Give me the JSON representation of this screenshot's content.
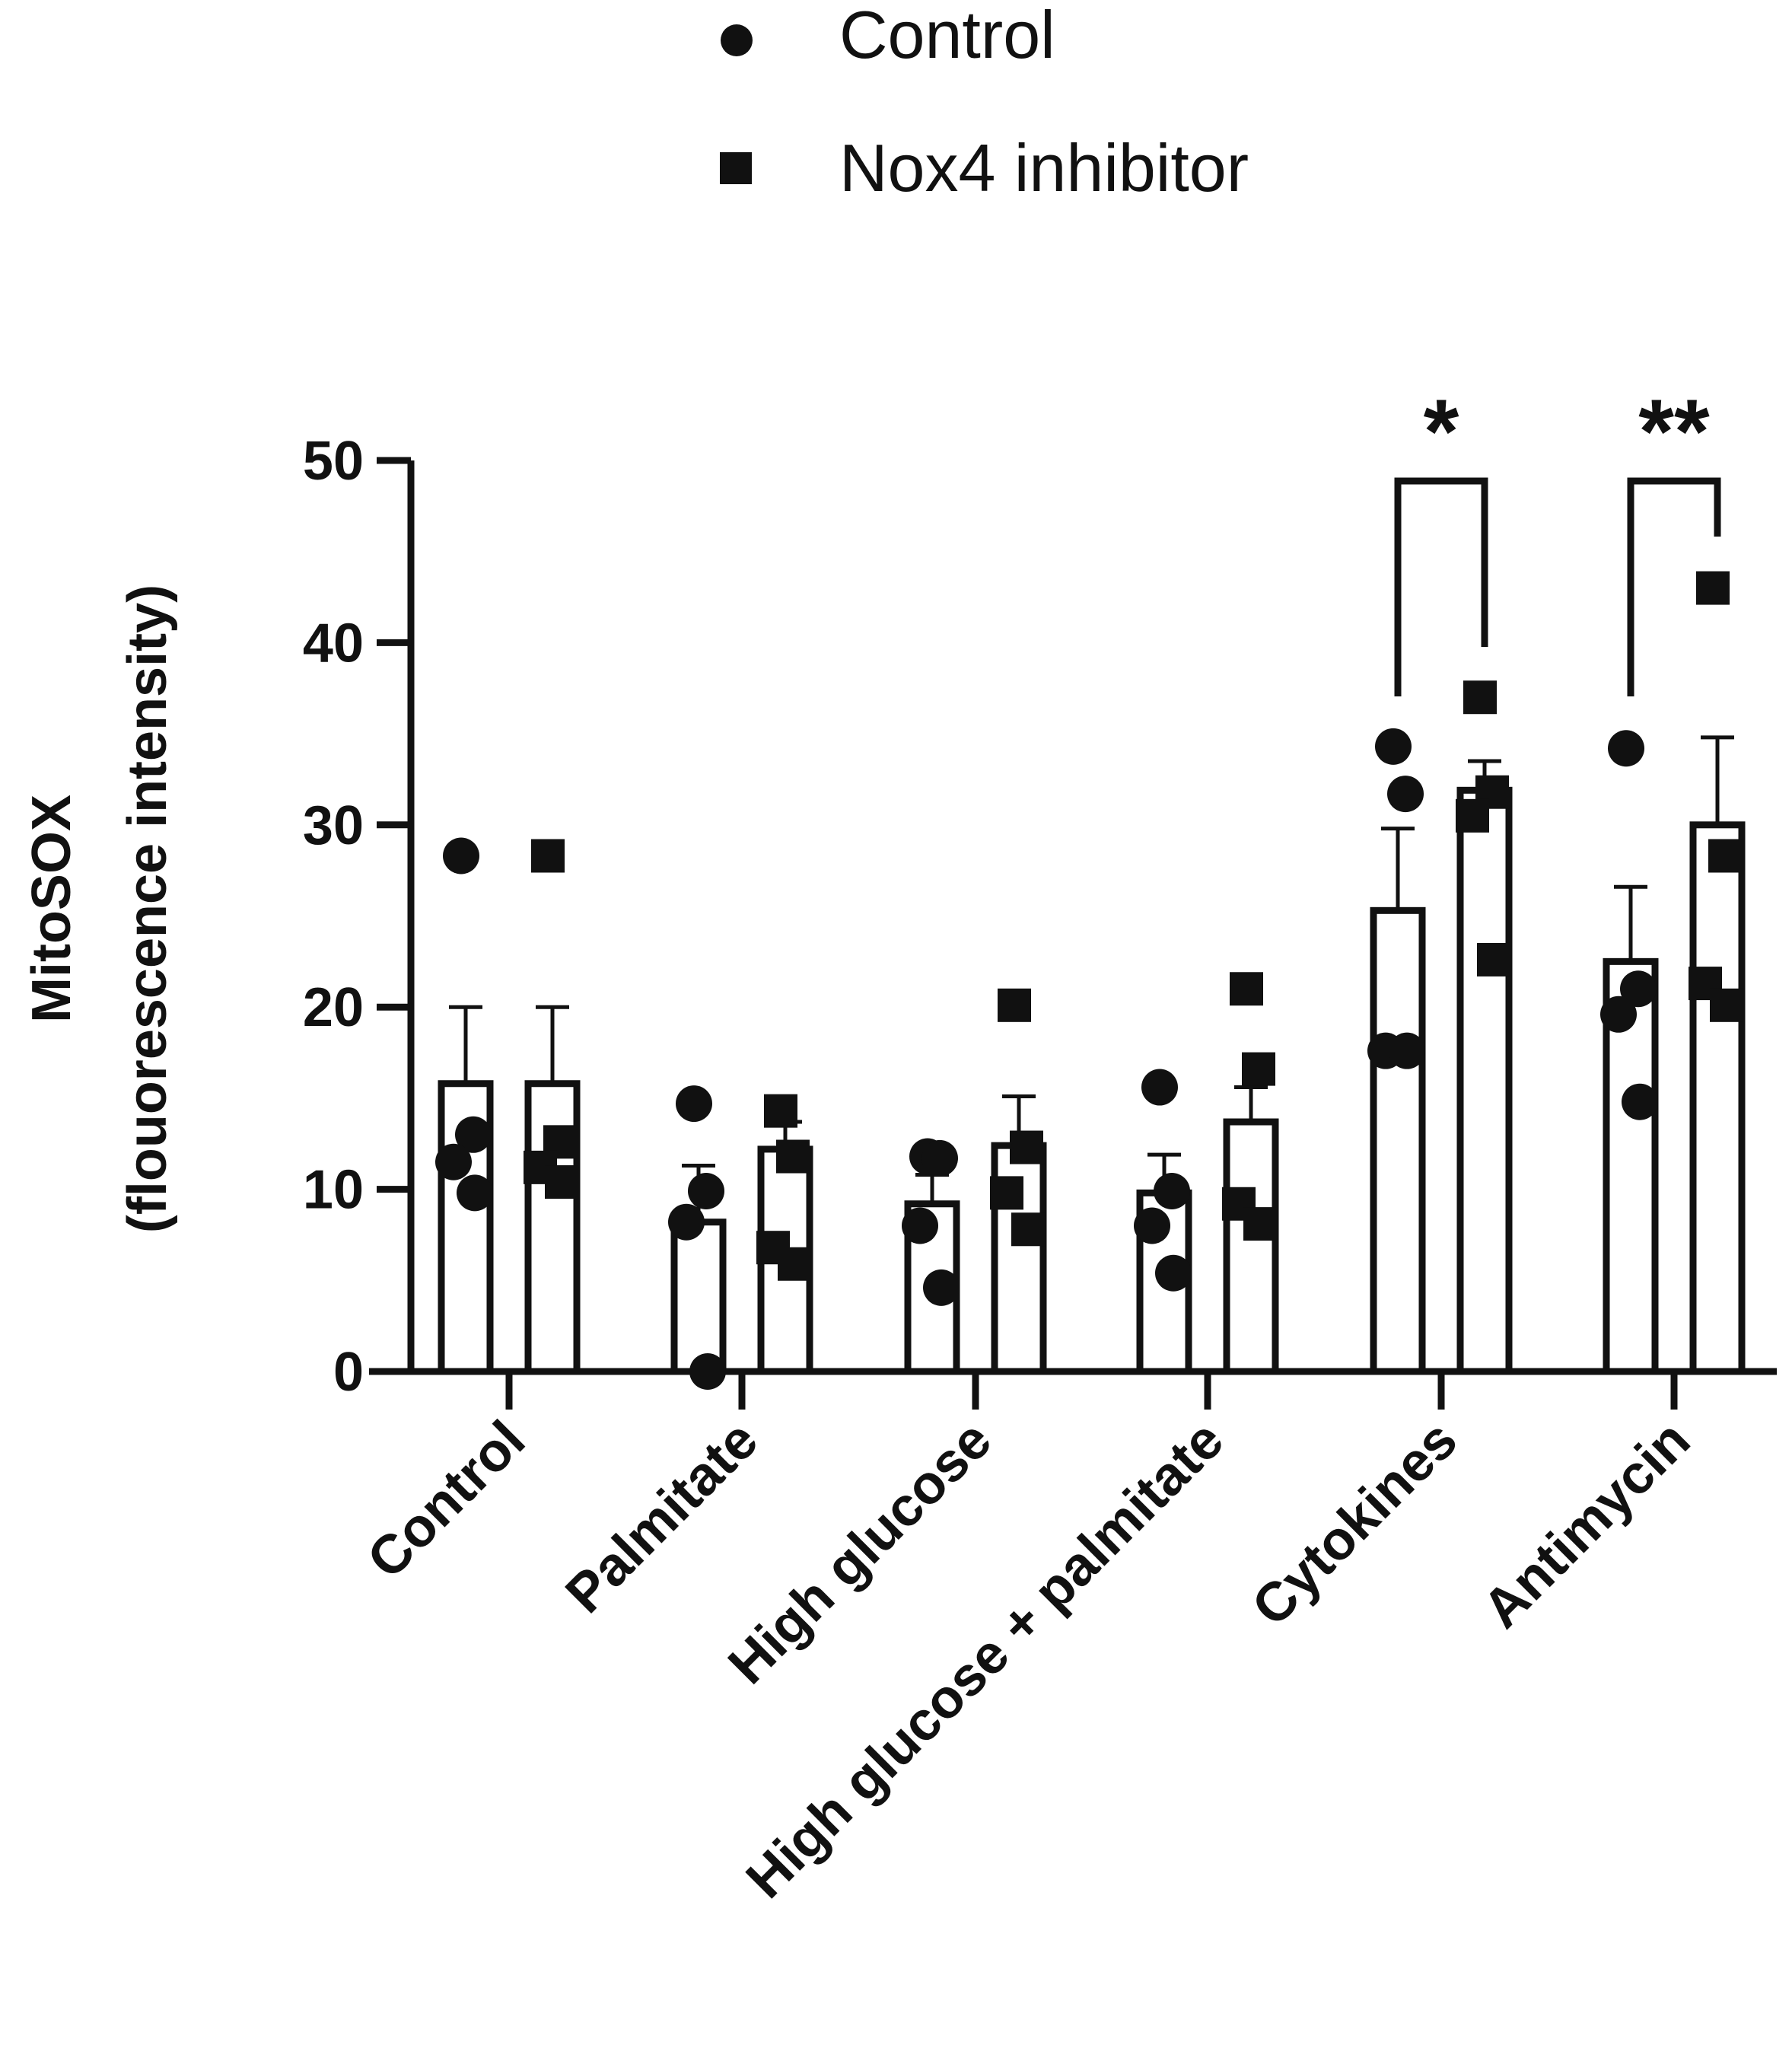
{
  "chart_data": {
    "type": "bar",
    "title": "",
    "xlabel": "",
    "ylabel": "MitoSOX",
    "ylabel_sub": "(flouorescence intensity)",
    "ylim": [
      0,
      50
    ],
    "yticks": [
      0,
      10,
      20,
      30,
      40,
      50
    ],
    "grid": false,
    "legend_position": "top-center",
    "categories": [
      "Control",
      "Palmitate",
      "High glucose",
      "High glucose + palmitate",
      "Cytokines",
      "Antimycin"
    ],
    "series": [
      {
        "name": "Control",
        "marker": "circle",
        "values": [
          15.8,
          8.2,
          9.2,
          9.8,
          25.3,
          22.5
        ],
        "error": [
          4.2,
          3.1,
          1.6,
          2.1,
          4.5,
          4.1
        ],
        "points": [
          [
            28.3,
            13.0,
            11.5,
            9.8
          ],
          [
            14.7,
            9.9,
            8.2,
            0.0
          ],
          [
            11.8,
            11.7,
            8.0,
            4.6
          ],
          [
            15.6,
            9.9,
            8.0,
            5.4
          ],
          [
            34.3,
            31.7,
            17.6,
            17.6
          ],
          [
            34.2,
            21.0,
            19.6,
            14.8
          ]
        ]
      },
      {
        "name": "Nox4 inhibitor",
        "marker": "square",
        "values": [
          15.8,
          12.2,
          12.4,
          13.7,
          31.9,
          30.0
        ],
        "error": [
          4.2,
          1.5,
          2.7,
          1.9,
          1.6,
          4.8
        ],
        "points": [
          [
            28.3,
            12.6,
            11.2,
            10.4
          ],
          [
            14.3,
            11.8,
            6.8,
            5.9
          ],
          [
            20.1,
            12.3,
            9.8,
            7.8
          ],
          [
            21.0,
            16.6,
            9.2,
            8.1
          ],
          [
            37.0,
            31.8,
            30.5,
            22.6
          ],
          [
            43.0,
            28.3,
            21.3,
            20.1
          ]
        ]
      }
    ],
    "annotations": [
      {
        "category": "Cytokines",
        "text": "*"
      },
      {
        "category": "Antimycin",
        "text": "**"
      }
    ]
  }
}
